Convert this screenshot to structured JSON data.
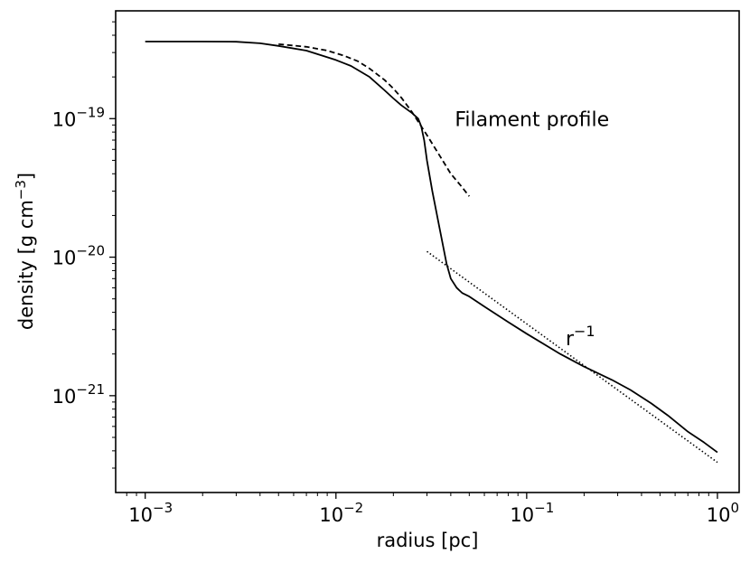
{
  "chart_data": {
    "type": "line",
    "xlabel": "radius [pc]",
    "ylabel": "density [g cm",
    "ylabel_exp": "−3",
    "ylabel_close": "]",
    "xscale": "log",
    "yscale": "log",
    "xlim": [
      0.0007,
      1.3
    ],
    "ylim": [
      2e-22,
      6e-19
    ],
    "grid": false,
    "x_ticks": [
      {
        "value": 0.001,
        "base": "10",
        "exp": "−3"
      },
      {
        "value": 0.01,
        "base": "10",
        "exp": "−2"
      },
      {
        "value": 0.1,
        "base": "10",
        "exp": "−1"
      },
      {
        "value": 1,
        "base": "10",
        "exp": "0"
      }
    ],
    "y_ticks": [
      {
        "value": 1e-21,
        "base": "10",
        "exp": "−21"
      },
      {
        "value": 1e-20,
        "base": "10",
        "exp": "−20"
      },
      {
        "value": 1e-19,
        "base": "10",
        "exp": "−19"
      }
    ],
    "series": [
      {
        "style": "solid",
        "color": "#000000",
        "x": [
          0.001,
          0.002,
          0.003,
          0.004,
          0.005,
          0.007,
          0.01,
          0.012,
          0.015,
          0.018,
          0.02,
          0.022,
          0.025,
          0.027,
          0.028,
          0.029,
          0.03,
          0.032,
          0.035,
          0.038,
          0.04,
          0.043,
          0.046,
          0.05,
          0.06,
          0.08,
          0.1,
          0.15,
          0.2,
          0.28,
          0.35,
          0.45,
          0.55,
          0.7,
          0.85,
          1.0
        ],
        "y": [
          3.6e-19,
          3.6e-19,
          3.59e-19,
          3.5e-19,
          3.35e-19,
          3.1e-19,
          2.65e-19,
          2.4e-19,
          2e-19,
          1.6e-19,
          1.4e-19,
          1.25e-19,
          1.1e-19,
          1e-19,
          8.8e-20,
          7e-20,
          5e-20,
          3e-20,
          1.6e-20,
          9e-21,
          7e-21,
          6e-21,
          5.5e-21,
          5.2e-21,
          4.4e-21,
          3.4e-21,
          2.8e-21,
          2e-21,
          1.62e-21,
          1.3e-21,
          1.1e-21,
          8.8e-22,
          7.2e-22,
          5.5e-22,
          4.6e-22,
          3.9e-22
        ]
      },
      {
        "style": "dashed",
        "color": "#000000",
        "x": [
          0.005,
          0.007,
          0.009,
          0.011,
          0.013,
          0.015,
          0.018,
          0.02,
          0.022,
          0.025,
          0.03,
          0.035,
          0.04,
          0.045,
          0.05
        ],
        "y": [
          3.45e-19,
          3.3e-19,
          3.1e-19,
          2.85e-19,
          2.6e-19,
          2.3e-19,
          1.9e-19,
          1.65e-19,
          1.42e-19,
          1.12e-19,
          7.6e-20,
          5.4e-20,
          4e-20,
          3.3e-20,
          2.75e-20
        ]
      },
      {
        "style": "dotted",
        "color": "#000000",
        "x": [
          0.03,
          1.0
        ],
        "y": [
          1.1e-20,
          3.3e-22
        ]
      }
    ],
    "annotations": [
      {
        "text": "Filament profile",
        "x": 0.042,
        "y": 1e-19
      },
      {
        "text": "r",
        "exp": "−1",
        "x": 0.16,
        "y": 2.6e-21
      }
    ]
  }
}
